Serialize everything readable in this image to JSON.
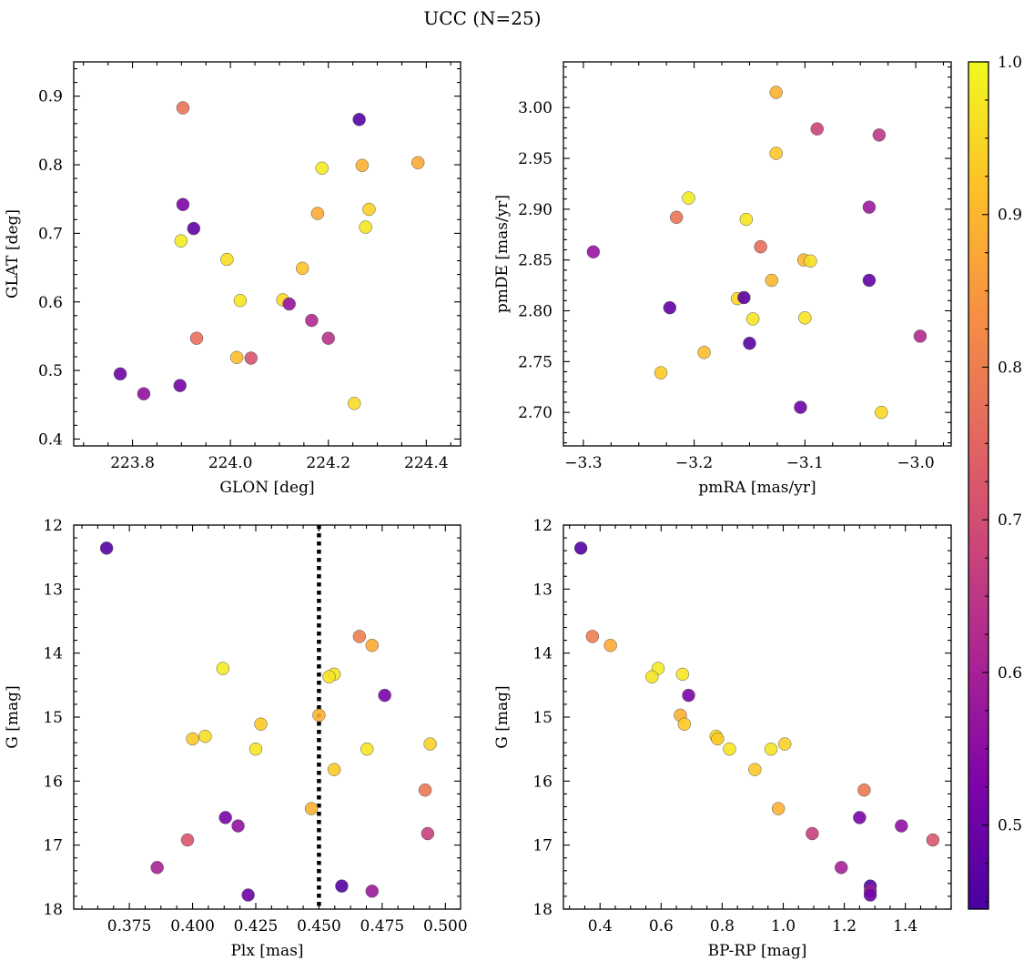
{
  "figure_title": "UCC (N=25)",
  "colorbar": {
    "range": [
      0.445,
      1.0
    ],
    "ticks": [
      0.5,
      0.6,
      0.7,
      0.8,
      0.9,
      1.0
    ],
    "tick_labels": [
      "0.5",
      "0.6",
      "0.7",
      "0.8",
      "0.9",
      "1.0"
    ],
    "colormap": "plasma"
  },
  "chart_data": [
    {
      "type": "scatter",
      "title": "",
      "xlabel": "GLON [deg]",
      "ylabel": "GLAT [deg]",
      "xlim": [
        223.68,
        224.47
      ],
      "ylim": [
        0.39,
        0.95
      ],
      "xticks": [
        223.8,
        224.0,
        224.2,
        224.4
      ],
      "xtick_labels": [
        "223.8",
        "224.0",
        "224.2",
        "224.4"
      ],
      "yticks": [
        0.4,
        0.5,
        0.6,
        0.7,
        0.8,
        0.9
      ],
      "ytick_labels": [
        "0.4",
        "0.5",
        "0.6",
        "0.7",
        "0.8",
        "0.9"
      ],
      "y_inverted": false,
      "points": [
        {
          "x": 223.903,
          "y": 0.883,
          "c": 0.78
        },
        {
          "x": 224.263,
          "y": 0.866,
          "c": 0.46
        },
        {
          "x": 224.383,
          "y": 0.803,
          "c": 0.88
        },
        {
          "x": 224.269,
          "y": 0.799,
          "c": 0.89
        },
        {
          "x": 224.187,
          "y": 0.795,
          "c": 0.98
        },
        {
          "x": 223.903,
          "y": 0.742,
          "c": 0.52
        },
        {
          "x": 224.283,
          "y": 0.735,
          "c": 0.94
        },
        {
          "x": 224.178,
          "y": 0.729,
          "c": 0.88
        },
        {
          "x": 224.276,
          "y": 0.709,
          "c": 0.97
        },
        {
          "x": 223.925,
          "y": 0.707,
          "c": 0.48
        },
        {
          "x": 223.899,
          "y": 0.689,
          "c": 0.98
        },
        {
          "x": 223.993,
          "y": 0.662,
          "c": 0.96
        },
        {
          "x": 224.147,
          "y": 0.649,
          "c": 0.92
        },
        {
          "x": 224.02,
          "y": 0.602,
          "c": 0.97
        },
        {
          "x": 224.107,
          "y": 0.603,
          "c": 0.95
        },
        {
          "x": 224.12,
          "y": 0.597,
          "c": 0.57
        },
        {
          "x": 224.166,
          "y": 0.573,
          "c": 0.62
        },
        {
          "x": 223.931,
          "y": 0.547,
          "c": 0.77
        },
        {
          "x": 224.2,
          "y": 0.547,
          "c": 0.64
        },
        {
          "x": 224.013,
          "y": 0.519,
          "c": 0.91
        },
        {
          "x": 224.042,
          "y": 0.518,
          "c": 0.71
        },
        {
          "x": 223.775,
          "y": 0.495,
          "c": 0.5
        },
        {
          "x": 223.897,
          "y": 0.478,
          "c": 0.51
        },
        {
          "x": 223.823,
          "y": 0.466,
          "c": 0.56
        },
        {
          "x": 224.253,
          "y": 0.452,
          "c": 0.96
        }
      ]
    },
    {
      "type": "scatter",
      "title": "",
      "xlabel": "pmRA [mas/yr]",
      "ylabel": "pmDE [mas/yr]",
      "xlim": [
        -3.318,
        -2.968
      ],
      "ylim": [
        2.667,
        3.045
      ],
      "xticks": [
        -3.3,
        -3.2,
        -3.1,
        -3.0
      ],
      "xtick_labels": [
        "−3.3",
        "−3.2",
        "−3.1",
        "−3.0"
      ],
      "yticks": [
        2.7,
        2.75,
        2.8,
        2.85,
        2.9,
        2.95,
        3.0
      ],
      "ytick_labels": [
        "2.70",
        "2.75",
        "2.80",
        "2.85",
        "2.90",
        "2.95",
        "3.00"
      ],
      "y_inverted": false,
      "points": [
        {
          "x": -3.126,
          "y": 3.015,
          "c": 0.89
        },
        {
          "x": -3.089,
          "y": 2.979,
          "c": 0.68
        },
        {
          "x": -3.033,
          "y": 2.973,
          "c": 0.65
        },
        {
          "x": -3.126,
          "y": 2.955,
          "c": 0.93
        },
        {
          "x": -3.205,
          "y": 2.911,
          "c": 0.98
        },
        {
          "x": -3.042,
          "y": 2.902,
          "c": 0.58
        },
        {
          "x": -3.216,
          "y": 2.892,
          "c": 0.78
        },
        {
          "x": -3.153,
          "y": 2.89,
          "c": 0.97
        },
        {
          "x": -3.14,
          "y": 2.863,
          "c": 0.77
        },
        {
          "x": -3.291,
          "y": 2.858,
          "c": 0.57
        },
        {
          "x": -3.101,
          "y": 2.85,
          "c": 0.9
        },
        {
          "x": -3.095,
          "y": 2.849,
          "c": 0.96
        },
        {
          "x": -3.042,
          "y": 2.83,
          "c": 0.48
        },
        {
          "x": -3.13,
          "y": 2.83,
          "c": 0.9
        },
        {
          "x": -3.161,
          "y": 2.812,
          "c": 0.95
        },
        {
          "x": -3.155,
          "y": 2.813,
          "c": 0.47
        },
        {
          "x": -3.222,
          "y": 2.803,
          "c": 0.48
        },
        {
          "x": -3.147,
          "y": 2.792,
          "c": 0.97
        },
        {
          "x": -3.1,
          "y": 2.793,
          "c": 0.97
        },
        {
          "x": -2.996,
          "y": 2.775,
          "c": 0.62
        },
        {
          "x": -3.15,
          "y": 2.768,
          "c": 0.47
        },
        {
          "x": -3.191,
          "y": 2.759,
          "c": 0.91
        },
        {
          "x": -3.23,
          "y": 2.739,
          "c": 0.93
        },
        {
          "x": -3.104,
          "y": 2.705,
          "c": 0.5
        },
        {
          "x": -3.031,
          "y": 2.7,
          "c": 0.95
        }
      ]
    },
    {
      "type": "scatter",
      "title": "",
      "xlabel": "Plx [mas]",
      "ylabel": "G [mag]",
      "xlim": [
        0.353,
        0.506
      ],
      "ylim": [
        12.0,
        18.0
      ],
      "xticks": [
        0.375,
        0.4,
        0.425,
        0.45,
        0.475,
        0.5
      ],
      "xtick_labels": [
        "0.375",
        "0.400",
        "0.425",
        "0.450",
        "0.475",
        "0.500"
      ],
      "yticks": [
        12,
        13,
        14,
        15,
        16,
        17,
        18
      ],
      "ytick_labels": [
        "12",
        "13",
        "14",
        "15",
        "16",
        "17",
        "18"
      ],
      "y_inverted": true,
      "vline": {
        "x": 0.45,
        "style": "dotted"
      },
      "points": [
        {
          "x": 0.366,
          "y": 12.36,
          "c": 0.46
        },
        {
          "x": 0.466,
          "y": 13.74,
          "c": 0.8
        },
        {
          "x": 0.471,
          "y": 13.88,
          "c": 0.88
        },
        {
          "x": 0.412,
          "y": 14.24,
          "c": 0.98
        },
        {
          "x": 0.456,
          "y": 14.33,
          "c": 0.97
        },
        {
          "x": 0.454,
          "y": 14.37,
          "c": 0.97
        },
        {
          "x": 0.476,
          "y": 14.66,
          "c": 0.52
        },
        {
          "x": 0.45,
          "y": 14.97,
          "c": 0.89
        },
        {
          "x": 0.427,
          "y": 15.11,
          "c": 0.93
        },
        {
          "x": 0.405,
          "y": 15.3,
          "c": 0.96
        },
        {
          "x": 0.4,
          "y": 15.34,
          "c": 0.93
        },
        {
          "x": 0.494,
          "y": 15.42,
          "c": 0.94
        },
        {
          "x": 0.425,
          "y": 15.5,
          "c": 0.97
        },
        {
          "x": 0.469,
          "y": 15.5,
          "c": 0.97
        },
        {
          "x": 0.456,
          "y": 15.82,
          "c": 0.93
        },
        {
          "x": 0.492,
          "y": 16.14,
          "c": 0.79
        },
        {
          "x": 0.447,
          "y": 16.43,
          "c": 0.89
        },
        {
          "x": 0.413,
          "y": 16.57,
          "c": 0.52
        },
        {
          "x": 0.418,
          "y": 16.7,
          "c": 0.56
        },
        {
          "x": 0.493,
          "y": 16.82,
          "c": 0.67
        },
        {
          "x": 0.398,
          "y": 16.92,
          "c": 0.72
        },
        {
          "x": 0.386,
          "y": 17.35,
          "c": 0.6
        },
        {
          "x": 0.459,
          "y": 17.64,
          "c": 0.46
        },
        {
          "x": 0.471,
          "y": 17.72,
          "c": 0.58
        },
        {
          "x": 0.422,
          "y": 17.78,
          "c": 0.5
        }
      ]
    },
    {
      "type": "scatter",
      "title": "",
      "xlabel": "BP-RP [mag]",
      "ylabel": "G [mag]",
      "xlim": [
        0.28,
        1.55
      ],
      "ylim": [
        12.0,
        18.0
      ],
      "xticks": [
        0.4,
        0.6,
        0.8,
        1.0,
        1.2,
        1.4
      ],
      "xtick_labels": [
        "0.4",
        "0.6",
        "0.8",
        "1.0",
        "1.2",
        "1.4"
      ],
      "yticks": [
        12,
        13,
        14,
        15,
        16,
        17,
        18
      ],
      "ytick_labels": [
        "12",
        "13",
        "14",
        "15",
        "16",
        "17",
        "18"
      ],
      "y_inverted": true,
      "points": [
        {
          "x": 0.337,
          "y": 12.36,
          "c": 0.46
        },
        {
          "x": 0.375,
          "y": 13.74,
          "c": 0.8
        },
        {
          "x": 0.434,
          "y": 13.88,
          "c": 0.88
        },
        {
          "x": 0.59,
          "y": 14.24,
          "c": 0.98
        },
        {
          "x": 0.67,
          "y": 14.33,
          "c": 0.97
        },
        {
          "x": 0.57,
          "y": 14.37,
          "c": 0.97
        },
        {
          "x": 0.69,
          "y": 14.66,
          "c": 0.52
        },
        {
          "x": 0.663,
          "y": 14.97,
          "c": 0.89
        },
        {
          "x": 0.676,
          "y": 15.11,
          "c": 0.93
        },
        {
          "x": 0.78,
          "y": 15.3,
          "c": 0.96
        },
        {
          "x": 0.785,
          "y": 15.34,
          "c": 0.93
        },
        {
          "x": 1.005,
          "y": 15.42,
          "c": 0.94
        },
        {
          "x": 0.824,
          "y": 15.5,
          "c": 0.97
        },
        {
          "x": 0.96,
          "y": 15.5,
          "c": 0.97
        },
        {
          "x": 0.907,
          "y": 15.82,
          "c": 0.93
        },
        {
          "x": 1.265,
          "y": 16.14,
          "c": 0.79
        },
        {
          "x": 0.984,
          "y": 16.43,
          "c": 0.89
        },
        {
          "x": 1.25,
          "y": 16.57,
          "c": 0.52
        },
        {
          "x": 1.387,
          "y": 16.7,
          "c": 0.56
        },
        {
          "x": 1.095,
          "y": 16.82,
          "c": 0.67
        },
        {
          "x": 1.49,
          "y": 16.92,
          "c": 0.72
        },
        {
          "x": 1.19,
          "y": 17.35,
          "c": 0.6
        },
        {
          "x": 1.285,
          "y": 17.64,
          "c": 0.46
        },
        {
          "x": 1.285,
          "y": 17.72,
          "c": 0.58
        },
        {
          "x": 1.285,
          "y": 17.78,
          "c": 0.5
        }
      ]
    }
  ]
}
